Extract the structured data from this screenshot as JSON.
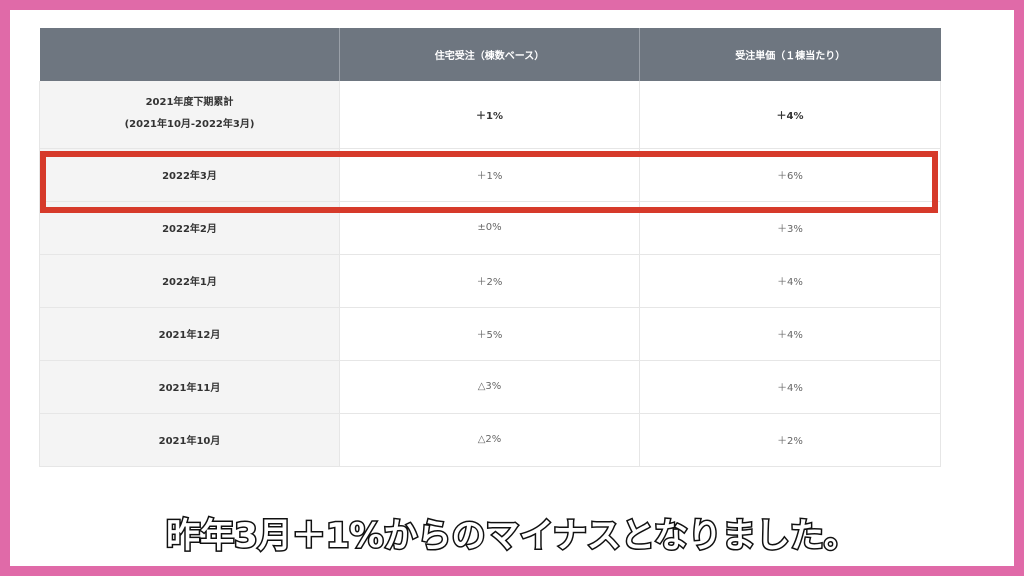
{
  "table": {
    "headers": [
      "",
      "住宅受注（棟数ベース）",
      "受注単価（１棟当たり）"
    ],
    "summary_row": {
      "label_line1": "2021年度下期累計",
      "label_line2": "(2021年10月-2022年3月)",
      "orders": "＋1%",
      "unit_price": "＋4%"
    },
    "rows": [
      {
        "month": "2022年3月",
        "orders": "＋1%",
        "unit_price": "＋6%"
      },
      {
        "month": "2022年2月",
        "orders": "±0%",
        "unit_price": "＋3%"
      },
      {
        "month": "2022年1月",
        "orders": "＋2%",
        "unit_price": "＋4%"
      },
      {
        "month": "2021年12月",
        "orders": "＋5%",
        "unit_price": "＋4%"
      },
      {
        "month": "2021年11月",
        "orders": "△3%",
        "unit_price": "＋4%"
      },
      {
        "month": "2021年10月",
        "orders": "△2%",
        "unit_price": "＋2%"
      }
    ]
  },
  "highlight_color": "#d63a2a",
  "caption": "昨年3月＋1%からのマイナスとなりました。"
}
